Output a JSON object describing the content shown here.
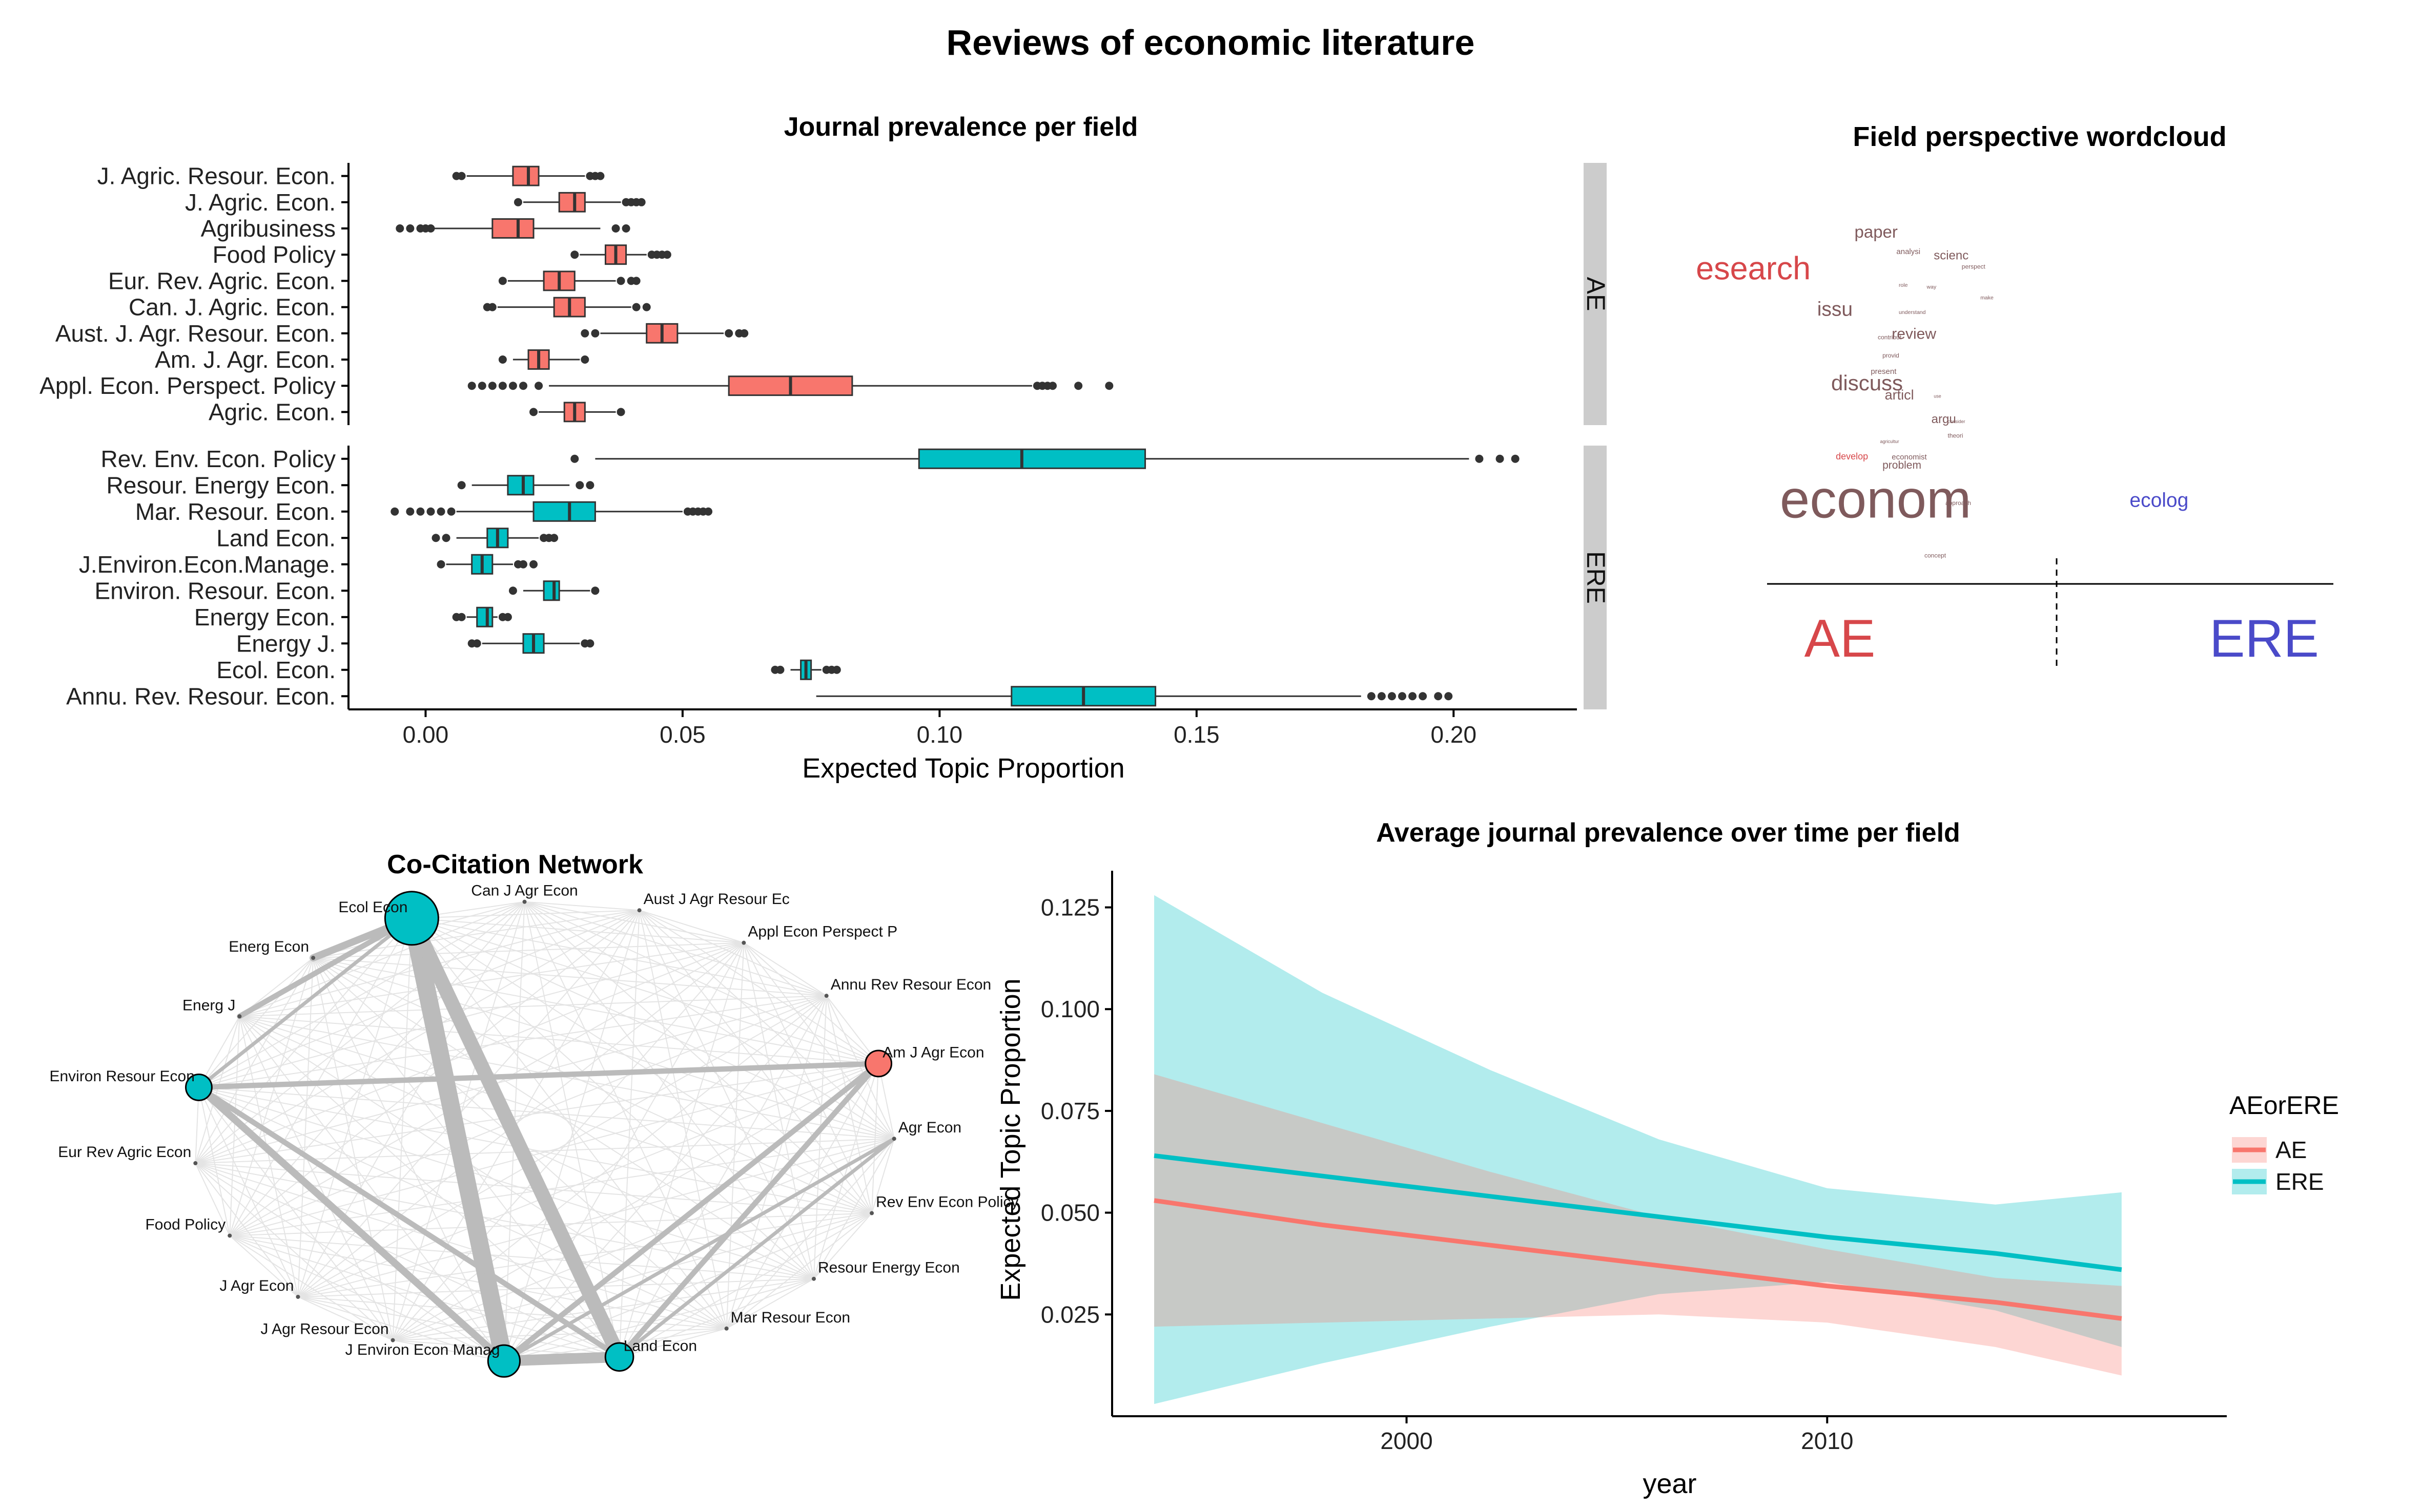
{
  "figure": {
    "title": "Reviews of economic literature"
  },
  "colors": {
    "AE": "#F8766D",
    "ERE": "#00BFC4",
    "strip_bg": "#CCCCCC",
    "wc_brown": "#7F5A5C",
    "wc_red": "#D7474A",
    "wc_blue": "#4A4AC9",
    "edge": "#BBBBBB"
  },
  "chart_data": [
    {
      "id": "boxplot",
      "type": "boxplot",
      "title": "Journal prevalence per field",
      "xlabel": "Expected Topic Proportion",
      "xlim": [
        -0.015,
        0.224
      ],
      "xticks": [
        "0.00",
        "0.05",
        "0.10",
        "0.15",
        "0.20"
      ],
      "xtick_values": [
        0,
        0.05,
        0.1,
        0.15,
        0.2
      ],
      "facets": [
        {
          "strip": "AE",
          "color_key": "AE",
          "rows": [
            {
              "label": "J. Agric. Resour. Econ.",
              "whisker": [
                0.008,
                0.031
              ],
              "box": [
                0.017,
                0.022
              ],
              "median": 0.02,
              "outliers": [
                0.006,
                0.007,
                0.032,
                0.033,
                0.034
              ]
            },
            {
              "label": "J. Agric. Econ.",
              "whisker": [
                0.019,
                0.038
              ],
              "box": [
                0.026,
                0.031
              ],
              "median": 0.029,
              "outliers": [
                0.018,
                0.039,
                0.04,
                0.041,
                0.042
              ]
            },
            {
              "label": "Agribusiness",
              "whisker": [
                0.001,
                0.034
              ],
              "box": [
                0.013,
                0.021
              ],
              "median": 0.018,
              "outliers": [
                -0.005,
                -0.003,
                -0.001,
                0.0,
                0.001,
                0.037,
                0.039
              ]
            },
            {
              "label": "Food Policy",
              "whisker": [
                0.03,
                0.043
              ],
              "box": [
                0.035,
                0.039
              ],
              "median": 0.037,
              "outliers": [
                0.029,
                0.044,
                0.045,
                0.046,
                0.047
              ]
            },
            {
              "label": "Eur. Rev. Agric. Econ.",
              "whisker": [
                0.016,
                0.037
              ],
              "box": [
                0.023,
                0.029
              ],
              "median": 0.026,
              "outliers": [
                0.015,
                0.038,
                0.04,
                0.041
              ]
            },
            {
              "label": "Can. J. Agric. Econ.",
              "whisker": [
                0.014,
                0.04
              ],
              "box": [
                0.025,
                0.031
              ],
              "median": 0.028,
              "outliers": [
                0.012,
                0.013,
                0.041,
                0.043
              ]
            },
            {
              "label": "Aust. J. Agr. Resour. Econ.",
              "whisker": [
                0.034,
                0.058
              ],
              "box": [
                0.043,
                0.049
              ],
              "median": 0.046,
              "outliers": [
                0.031,
                0.033,
                0.059,
                0.061,
                0.062
              ]
            },
            {
              "label": "Am. J. Agr. Econ.",
              "whisker": [
                0.017,
                0.03
              ],
              "box": [
                0.02,
                0.024
              ],
              "median": 0.022,
              "outliers": [
                0.015,
                0.031
              ]
            },
            {
              "label": "Appl. Econ. Perspect. Policy",
              "whisker": [
                0.024,
                0.118
              ],
              "box": [
                0.059,
                0.083
              ],
              "median": 0.071,
              "outliers": [
                0.009,
                0.011,
                0.013,
                0.015,
                0.017,
                0.019,
                0.022,
                0.119,
                0.12,
                0.121,
                0.122,
                0.127,
                0.133
              ]
            },
            {
              "label": "Agric. Econ.",
              "whisker": [
                0.022,
                0.037
              ],
              "box": [
                0.027,
                0.031
              ],
              "median": 0.029,
              "outliers": [
                0.021,
                0.038
              ]
            }
          ]
        },
        {
          "strip": "ERE",
          "color_key": "ERE",
          "rows": [
            {
              "label": "Rev. Env. Econ. Policy",
              "whisker": [
                0.033,
                0.203
              ],
              "box": [
                0.096,
                0.14
              ],
              "median": 0.116,
              "outliers": [
                0.029,
                0.205,
                0.209,
                0.212
              ]
            },
            {
              "label": "Resour. Energy Econ.",
              "whisker": [
                0.009,
                0.028
              ],
              "box": [
                0.016,
                0.021
              ],
              "median": 0.019,
              "outliers": [
                0.007,
                0.03,
                0.032
              ]
            },
            {
              "label": "Mar. Resour. Econ.",
              "whisker": [
                0.006,
                0.05
              ],
              "box": [
                0.021,
                0.033
              ],
              "median": 0.028,
              "outliers": [
                -0.006,
                -0.003,
                -0.001,
                0.001,
                0.003,
                0.005,
                0.051,
                0.052,
                0.053,
                0.054,
                0.055
              ]
            },
            {
              "label": "Land Econ.",
              "whisker": [
                0.006,
                0.022
              ],
              "box": [
                0.012,
                0.016
              ],
              "median": 0.014,
              "outliers": [
                0.002,
                0.004,
                0.023,
                0.024,
                0.025
              ]
            },
            {
              "label": "J.Environ.Econ.Manage.",
              "whisker": [
                0.004,
                0.017
              ],
              "box": [
                0.009,
                0.013
              ],
              "median": 0.011,
              "outliers": [
                0.003,
                0.018,
                0.019,
                0.021
              ]
            },
            {
              "label": "Environ. Resour. Econ.",
              "whisker": [
                0.019,
                0.032
              ],
              "box": [
                0.023,
                0.026
              ],
              "median": 0.025,
              "outliers": [
                0.017,
                0.033
              ]
            },
            {
              "label": "Energy Econ.",
              "whisker": [
                0.008,
                0.014
              ],
              "box": [
                0.01,
                0.013
              ],
              "median": 0.012,
              "outliers": [
                0.006,
                0.007,
                0.015,
                0.016
              ]
            },
            {
              "label": "Energy J.",
              "whisker": [
                0.011,
                0.03
              ],
              "box": [
                0.019,
                0.023
              ],
              "median": 0.021,
              "outliers": [
                0.009,
                0.01,
                0.031,
                0.032
              ]
            },
            {
              "label": "Ecol. Econ.",
              "whisker": [
                0.071,
                0.077
              ],
              "box": [
                0.073,
                0.075
              ],
              "median": 0.074,
              "outliers": [
                0.068,
                0.069,
                0.078,
                0.079,
                0.08
              ]
            },
            {
              "label": "Annu. Rev. Resour. Econ.",
              "whisker": [
                0.076,
                0.182
              ],
              "box": [
                0.114,
                0.142
              ],
              "median": 0.128,
              "outliers": [
                0.184,
                0.186,
                0.188,
                0.19,
                0.192,
                0.194,
                0.197,
                0.199
              ]
            }
          ]
        }
      ]
    },
    {
      "id": "wordcloud",
      "type": "wordcloud",
      "title": "Field perspective wordcloud",
      "axis_labels": {
        "left": "AE",
        "right": "ERE"
      },
      "words": [
        {
          "text": "paper",
          "u": 0.35,
          "v": 0.09,
          "size": 11,
          "color": "wc_brown"
        },
        {
          "text": "analysi",
          "u": 0.44,
          "v": 0.135,
          "size": 5,
          "color": "wc_brown"
        },
        {
          "text": "scienc",
          "u": 0.52,
          "v": 0.15,
          "size": 8,
          "color": "wc_brown"
        },
        {
          "text": "perspect",
          "u": 0.58,
          "v": 0.175,
          "size": 4,
          "color": "wc_brown"
        },
        {
          "text": "esearch",
          "u": 0.01,
          "v": 0.205,
          "size": 21,
          "color": "wc_red"
        },
        {
          "text": "role",
          "u": 0.445,
          "v": 0.225,
          "size": 3.5,
          "color": "wc_brown"
        },
        {
          "text": "way",
          "u": 0.505,
          "v": 0.23,
          "size": 3.5,
          "color": "wc_brown"
        },
        {
          "text": "make",
          "u": 0.62,
          "v": 0.26,
          "size": 3.5,
          "color": "wc_brown"
        },
        {
          "text": "issu",
          "u": 0.27,
          "v": 0.305,
          "size": 13,
          "color": "wc_brown"
        },
        {
          "text": "understand",
          "u": 0.445,
          "v": 0.3,
          "size": 3.5,
          "color": "wc_brown"
        },
        {
          "text": "contribut",
          "u": 0.4,
          "v": 0.37,
          "size": 4,
          "color": "wc_brown"
        },
        {
          "text": "review",
          "u": 0.43,
          "v": 0.368,
          "size": 10,
          "color": "wc_brown"
        },
        {
          "text": "provid",
          "u": 0.41,
          "v": 0.42,
          "size": 4,
          "color": "wc_brown"
        },
        {
          "text": "present",
          "u": 0.385,
          "v": 0.465,
          "size": 5,
          "color": "wc_brown"
        },
        {
          "text": "discuss",
          "u": 0.3,
          "v": 0.51,
          "size": 14,
          "color": "wc_brown"
        },
        {
          "text": "articl",
          "u": 0.415,
          "v": 0.535,
          "size": 9,
          "color": "wc_brown"
        },
        {
          "text": "use",
          "u": 0.52,
          "v": 0.53,
          "size": 3,
          "color": "wc_brown"
        },
        {
          "text": "argu",
          "u": 0.515,
          "v": 0.6,
          "size": 8,
          "color": "wc_brown"
        },
        {
          "text": "consider",
          "u": 0.55,
          "v": 0.6,
          "size": 3,
          "color": "wc_brown"
        },
        {
          "text": "theori",
          "u": 0.55,
          "v": 0.64,
          "size": 4,
          "color": "wc_brown"
        },
        {
          "text": "agricultur",
          "u": 0.405,
          "v": 0.655,
          "size": 3,
          "color": "wc_brown"
        },
        {
          "text": "develop",
          "u": 0.31,
          "v": 0.7,
          "size": 6,
          "color": "wc_red"
        },
        {
          "text": "economist",
          "u": 0.43,
          "v": 0.7,
          "size": 5,
          "color": "wc_brown"
        },
        {
          "text": "problem",
          "u": 0.41,
          "v": 0.725,
          "size": 7,
          "color": "wc_brown"
        },
        {
          "text": "econom",
          "u": 0.19,
          "v": 0.86,
          "size": 35,
          "color": "wc_brown"
        },
        {
          "text": "ecolog",
          "u": 0.94,
          "v": 0.83,
          "size": 13,
          "color": "wc_blue"
        },
        {
          "text": "approach",
          "u": 0.545,
          "v": 0.825,
          "size": 4,
          "color": "wc_brown"
        },
        {
          "text": "concept",
          "u": 0.5,
          "v": 0.97,
          "size": 4,
          "color": "wc_brown"
        }
      ]
    },
    {
      "id": "network",
      "type": "network",
      "title": "Co-Citation Network",
      "nodes": [
        {
          "label": "Ecol Econ",
          "field": "ERE",
          "weight": 1.0
        },
        {
          "label": "Can J Agr Econ",
          "field": "",
          "weight": 0
        },
        {
          "label": "Aust J Agr Resour Ec",
          "field": "",
          "weight": 0
        },
        {
          "label": "Appl Econ Perspect P",
          "field": "",
          "weight": 0
        },
        {
          "label": "Annu Rev Resour Econ",
          "field": "",
          "weight": 0
        },
        {
          "label": "Am J Agr Econ",
          "field": "AE",
          "weight": 0.3
        },
        {
          "label": "Agr Econ",
          "field": "",
          "weight": 0
        },
        {
          "label": "Rev Env Econ Policy",
          "field": "",
          "weight": 0
        },
        {
          "label": "Resour Energy Econ",
          "field": "",
          "weight": 0
        },
        {
          "label": "Mar Resour Econ",
          "field": "",
          "weight": 0
        },
        {
          "label": "Land Econ",
          "field": "ERE",
          "weight": 0.35
        },
        {
          "label": "J Environ Econ Manag",
          "field": "ERE",
          "weight": 0.45
        },
        {
          "label": "J Agr Resour Econ",
          "field": "",
          "weight": 0
        },
        {
          "label": "J Agr Econ",
          "field": "",
          "weight": 0
        },
        {
          "label": "Food Policy",
          "field": "",
          "weight": 0
        },
        {
          "label": "Eur Rev Agric Econ",
          "field": "",
          "weight": 0
        },
        {
          "label": "Environ Resour Econ",
          "field": "ERE",
          "weight": 0.3
        },
        {
          "label": "Energ J",
          "field": "",
          "weight": 0
        },
        {
          "label": "Energ Econ",
          "field": "",
          "weight": 0
        }
      ],
      "strong_edges": [
        [
          "Ecol Econ",
          "J Environ Econ Manag",
          10
        ],
        [
          "Ecol Econ",
          "Land Econ",
          8
        ],
        [
          "Ecol Econ",
          "Energ Econ",
          4
        ],
        [
          "Ecol Econ",
          "Energ J",
          3
        ],
        [
          "J Environ Econ Manag",
          "Land Econ",
          6
        ],
        [
          "Environ Resour Econ",
          "J Environ Econ Manag",
          4
        ],
        [
          "Environ Resour Econ",
          "Land Econ",
          3
        ],
        [
          "Am J Agr Econ",
          "J Environ Econ Manag",
          3
        ],
        [
          "Am J Agr Econ",
          "Land Econ",
          3
        ],
        [
          "Am J Agr Econ",
          "Environ Resour Econ",
          3
        ],
        [
          "Agr Econ",
          "Land Econ",
          2
        ],
        [
          "Agr Econ",
          "J Environ Econ Manag",
          2
        ],
        [
          "Environ Resour Econ",
          "Ecol Econ",
          2
        ]
      ]
    },
    {
      "id": "trend",
      "type": "line",
      "title": "Average journal prevalence over time per field",
      "xlabel": "year",
      "ylabel": "Expected Topic Proportion",
      "xlim": [
        1993.0,
        2019.5
      ],
      "ylim": [
        0.0,
        0.134
      ],
      "xticks": [
        2000,
        2010
      ],
      "yticks": [
        "0.025",
        "0.050",
        "0.075",
        "0.100",
        "0.125"
      ],
      "ytick_values": [
        0.025,
        0.05,
        0.075,
        0.1,
        0.125
      ],
      "legend_title": "AEorERE",
      "legend_position": "right",
      "x": [
        1994,
        1998,
        2002,
        2006,
        2010,
        2014,
        2017
      ],
      "series": [
        {
          "name": "AE",
          "color_key": "AE",
          "mean": [
            0.053,
            0.047,
            0.042,
            0.037,
            0.032,
            0.028,
            0.024
          ],
          "lower": [
            0.022,
            0.023,
            0.024,
            0.025,
            0.023,
            0.017,
            0.01
          ],
          "upper": [
            0.084,
            0.072,
            0.06,
            0.049,
            0.041,
            0.034,
            0.032
          ]
        },
        {
          "name": "ERE",
          "color_key": "ERE",
          "mean": [
            0.064,
            0.059,
            0.054,
            0.049,
            0.044,
            0.04,
            0.036
          ],
          "lower": [
            0.003,
            0.013,
            0.022,
            0.03,
            0.033,
            0.026,
            0.017
          ],
          "upper": [
            0.128,
            0.104,
            0.085,
            0.068,
            0.056,
            0.052,
            0.055
          ]
        }
      ]
    }
  ]
}
